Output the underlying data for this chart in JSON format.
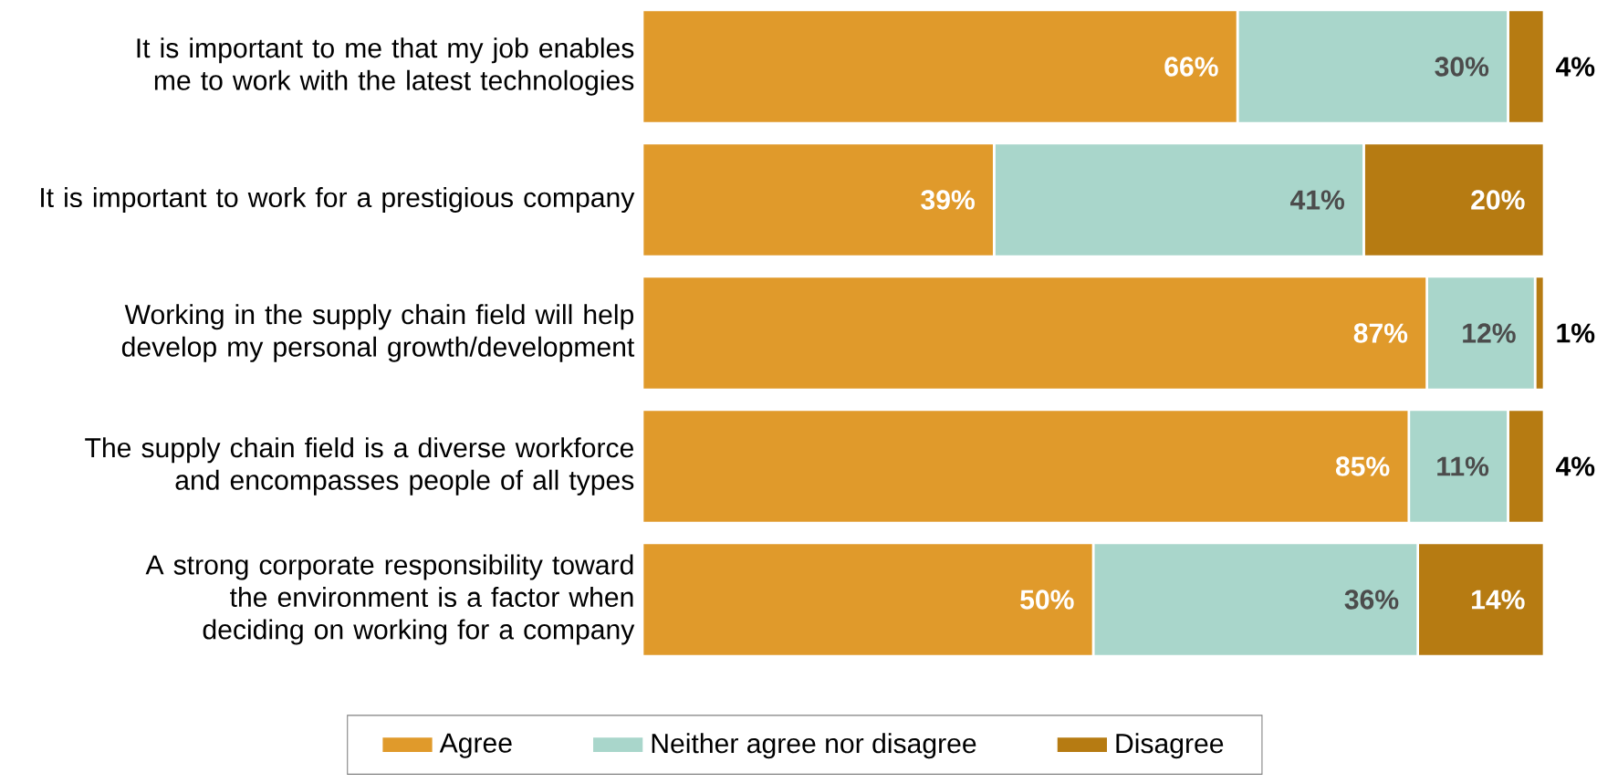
{
  "chart_data": {
    "type": "bar",
    "orientation": "horizontal",
    "stacked": true,
    "categories": [
      "It is important to me that my job enables me to work with the latest technologies",
      "It is important to work for a prestigious company",
      "Working in the supply chain field will help develop my personal growth/development",
      "The supply chain field is a diverse workforce and encompasses people of all types",
      "A strong corporate responsibility toward the environment is a factor when deciding on working for a company"
    ],
    "series": [
      {
        "name": "Agree",
        "color": "#e09a2b",
        "values": [
          66,
          39,
          87,
          85,
          50
        ],
        "value_labels": [
          "66%",
          "39%",
          "87%",
          "85%",
          "50%"
        ]
      },
      {
        "name": "Neither agree nor disagree",
        "color": "#a9d6cb",
        "values": [
          30,
          41,
          12,
          11,
          36
        ],
        "value_labels": [
          "30%",
          "41%",
          "12%",
          "11%",
          "36%"
        ]
      },
      {
        "name": "Disagree",
        "color": "#b67b12",
        "values": [
          4,
          20,
          1,
          4,
          14
        ],
        "value_labels": [
          "4%",
          "20%",
          "1%",
          "4%",
          "14%"
        ]
      }
    ],
    "xlim": [
      0,
      100
    ],
    "legend": "bottom"
  }
}
